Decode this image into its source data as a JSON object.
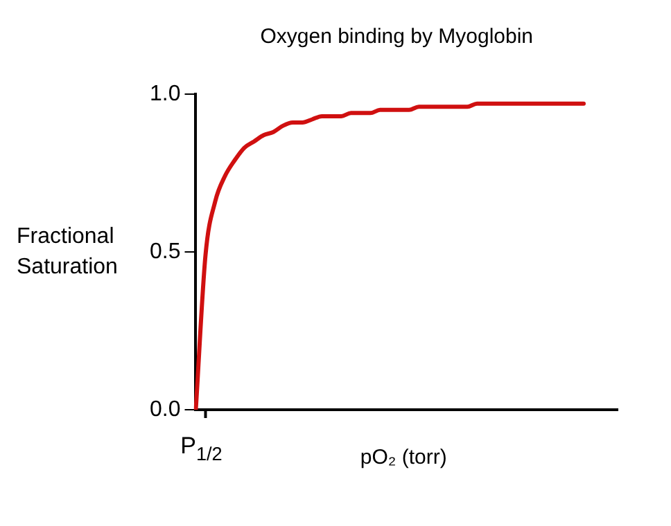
{
  "chart_data": {
    "type": "line",
    "title": "Oxygen binding by Myoglobin",
    "xlabel": "pO₂ (torr)",
    "ylabel": "Fractional Saturation",
    "categories": [
      null,
      null,
      null,
      null,
      null,
      null,
      null,
      null,
      null,
      null,
      null,
      null,
      null,
      null,
      null,
      null,
      null,
      null,
      null,
      null,
      null,
      null,
      null,
      null,
      null,
      null,
      null,
      null,
      null,
      null,
      null,
      null,
      null,
      null,
      null,
      null,
      null,
      null,
      null,
      null,
      null
    ],
    "series": [
      {
        "color": "#d01010",
        "values": [
          0,
          0.49,
          0.66,
          0.74,
          0.79,
          0.83,
          0.85,
          0.87,
          0.88,
          0.9,
          0.91,
          0.91,
          0.92,
          0.93,
          0.93,
          0.93,
          0.94,
          0.94,
          0.94,
          0.95,
          0.95,
          0.95,
          0.95,
          0.96,
          0.96,
          0.96,
          0.96,
          0.96,
          0.96,
          0.97,
          0.97,
          0.97,
          0.97,
          0.97,
          0.97,
          0.97,
          0.97,
          0.97,
          0.97,
          0.97,
          0.97
        ]
      }
    ],
    "annotations": [
      "P$_{1/2}$"
    ],
    "ylim": [
      0,
      1
    ],
    "yticks": [
      {
        "value": 0,
        "label": "0.0"
      },
      {
        "value": 0.5,
        "label": "0.5"
      },
      {
        "value": 1,
        "label": "1.0"
      }
    ],
    "grid": false,
    "legend": false,
    "marker": "none",
    "line_style": "solid"
  }
}
